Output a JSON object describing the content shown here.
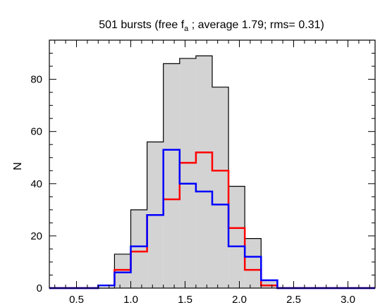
{
  "chart_data": {
    "type": "histogram",
    "title": {
      "prefix": "501 bursts (free f",
      "subscript": "a",
      "suffix": " ; average   1.79; rms=  0.31)"
    },
    "ylabel": "N",
    "xlabel": "",
    "xlim": [
      0.25,
      3.25
    ],
    "ylim": [
      0,
      95
    ],
    "x_ticks_major": [
      0.5,
      1.0,
      1.5,
      2.0,
      2.5,
      3.0
    ],
    "x_tick_labels": [
      "0.5",
      "1.0",
      "1.5",
      "2.0",
      "2.5",
      "3.0"
    ],
    "y_ticks_major": [
      0,
      20,
      40,
      60,
      80
    ],
    "y_tick_labels": [
      "0",
      "20",
      "40",
      "60",
      "80"
    ],
    "bin_edges": [
      0.25,
      0.4,
      0.55,
      0.7,
      0.85,
      1.0,
      1.15,
      1.3,
      1.45,
      1.6,
      1.75,
      1.9,
      2.05,
      2.2,
      2.35,
      2.5,
      2.65,
      2.8,
      2.95,
      3.1,
      3.25
    ],
    "series": [
      {
        "color": "#000000",
        "fill": "#d3d3d3",
        "values": [
          0,
          0,
          0,
          0,
          13,
          30,
          56,
          86,
          88,
          89,
          77,
          39,
          19,
          3,
          0,
          0,
          0,
          0,
          0,
          0
        ]
      },
      {
        "color": "#ff0000",
        "fill": "none",
        "values": [
          0,
          0,
          0,
          1,
          7,
          14,
          28,
          34,
          48,
          52,
          45,
          23,
          7,
          1,
          0,
          0,
          0,
          0,
          0,
          0
        ]
      },
      {
        "color": "#0000ff",
        "fill": "none",
        "values": [
          0,
          0,
          0,
          1,
          6,
          16,
          28,
          53,
          40,
          37,
          32,
          16,
          12,
          3,
          0,
          0,
          0,
          0,
          0,
          0
        ]
      }
    ]
  }
}
